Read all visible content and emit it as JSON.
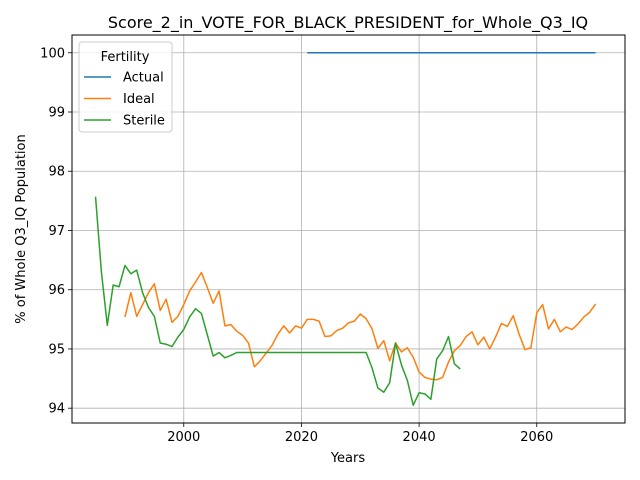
{
  "chart_data": {
    "type": "line",
    "title": "Score_2_in_VOTE_FOR_BLACK_PRESIDENT_for_Whole_Q3_IQ",
    "xlabel": "Years",
    "ylabel": "% of Whole Q3_IQ Population",
    "xlim": [
      1981,
      2075
    ],
    "ylim": [
      93.75,
      100.3
    ],
    "xticks": [
      2000,
      2020,
      2040,
      2060
    ],
    "yticks": [
      94,
      95,
      96,
      97,
      98,
      99,
      100
    ],
    "grid": true,
    "legend": {
      "title": "Fertility",
      "position": "upper-left"
    },
    "series": [
      {
        "name": "Actual",
        "color": "#1f77b4",
        "x": [
          2021,
          2070
        ],
        "y": [
          100.0,
          100.0
        ]
      },
      {
        "name": "Ideal",
        "color": "#ff7f0e",
        "x": [
          1990,
          1991,
          1992,
          1993,
          1994,
          1995,
          1996,
          1997,
          1998,
          1999,
          2000,
          2001,
          2002,
          2003,
          2004,
          2005,
          2006,
          2007,
          2008,
          2009,
          2010,
          2011,
          2012,
          2013,
          2014,
          2015,
          2016,
          2017,
          2018,
          2019,
          2020,
          2021,
          2022,
          2023,
          2024,
          2025,
          2026,
          2027,
          2028,
          2029,
          2030,
          2031,
          2032,
          2033,
          2034,
          2035,
          2036,
          2037,
          2038,
          2039,
          2040,
          2041,
          2042,
          2043,
          2044,
          2045,
          2046,
          2047,
          2048,
          2049,
          2050,
          2051,
          2052,
          2053,
          2054,
          2055,
          2056,
          2057,
          2058,
          2059,
          2060,
          2061,
          2062,
          2063,
          2064,
          2065,
          2066,
          2067,
          2068,
          2069,
          2070
        ],
        "y": [
          95.54,
          95.95,
          95.55,
          95.75,
          95.95,
          96.1,
          95.65,
          95.84,
          95.45,
          95.55,
          95.75,
          95.98,
          96.13,
          96.29,
          96.04,
          95.77,
          95.98,
          95.39,
          95.41,
          95.3,
          95.23,
          95.1,
          94.7,
          94.8,
          94.93,
          95.06,
          95.25,
          95.39,
          95.27,
          95.39,
          95.35,
          95.5,
          95.5,
          95.47,
          95.21,
          95.22,
          95.31,
          95.35,
          95.44,
          95.47,
          95.59,
          95.51,
          95.34,
          95.01,
          95.14,
          94.8,
          95.1,
          94.95,
          95.02,
          94.86,
          94.61,
          94.52,
          94.49,
          94.48,
          94.52,
          94.78,
          94.97,
          95.06,
          95.21,
          95.29,
          95.07,
          95.2,
          95.0,
          95.2,
          95.43,
          95.38,
          95.56,
          95.25,
          94.99,
          95.02,
          95.61,
          95.75,
          95.34,
          95.5,
          95.29,
          95.37,
          95.33,
          95.42,
          95.54,
          95.62,
          95.76
        ]
      },
      {
        "name": "Sterile",
        "color": "#2ca02c",
        "x": [
          1985,
          1986,
          1987,
          1988,
          1989,
          1990,
          1991,
          1992,
          1993,
          1994,
          1995,
          1996,
          1997,
          1998,
          1999,
          2000,
          2001,
          2002,
          2003,
          2004,
          2005,
          2006,
          2007,
          2008,
          2009,
          2010,
          2011,
          2012,
          2013,
          2014,
          2015,
          2016,
          2017,
          2018,
          2019,
          2020,
          2021,
          2022,
          2023,
          2024,
          2025,
          2026,
          2027,
          2028,
          2029,
          2030,
          2031,
          2032,
          2033,
          2034,
          2035,
          2036,
          2037,
          2038,
          2039,
          2040,
          2041,
          2042,
          2043,
          2044,
          2045,
          2046,
          2047
        ],
        "y": [
          97.57,
          96.3,
          95.4,
          96.08,
          96.05,
          96.41,
          96.27,
          96.33,
          95.95,
          95.7,
          95.55,
          95.1,
          95.08,
          95.04,
          95.2,
          95.33,
          95.54,
          95.68,
          95.6,
          95.24,
          94.88,
          94.94,
          94.85,
          94.89,
          94.94,
          94.94,
          94.94,
          94.94,
          94.94,
          94.94,
          94.94,
          94.94,
          94.94,
          94.94,
          94.94,
          94.94,
          94.94,
          94.94,
          94.94,
          94.94,
          94.94,
          94.94,
          94.94,
          94.94,
          94.94,
          94.94,
          94.94,
          94.68,
          94.34,
          94.27,
          94.43,
          95.1,
          94.73,
          94.47,
          94.05,
          94.26,
          94.24,
          94.15,
          94.83,
          94.97,
          95.21,
          94.75,
          94.66
        ]
      }
    ]
  }
}
